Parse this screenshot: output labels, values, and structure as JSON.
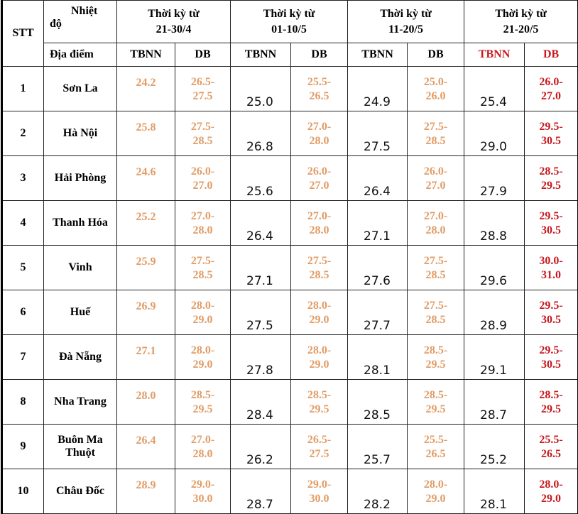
{
  "header": {
    "stt": "STT",
    "temp_label": "Nhiệt",
    "temp_label2": "độ",
    "location_label": "Địa điểm",
    "periods": [
      {
        "line1": "Thời kỳ từ",
        "line2": "21-30/4",
        "highlight": false
      },
      {
        "line1": "Thời kỳ từ",
        "line2": "01-10/5",
        "highlight": false
      },
      {
        "line1": "Thời kỳ từ",
        "line2": "11-20/5",
        "highlight": false
      },
      {
        "line1": "Thời kỳ từ",
        "line2": "21-20/5",
        "highlight": true
      }
    ],
    "sub_tbnn": "TBNN",
    "sub_db": "DB"
  },
  "colors": {
    "orange": "#e19c66",
    "red": "#c8181e",
    "text": "#111111"
  },
  "rows": [
    {
      "stt": "1",
      "location": [
        "Sơn La"
      ],
      "values": [
        [
          "24.2",
          "26.5-",
          "27.5"
        ],
        [
          "25.0",
          "25.5-",
          "26.5"
        ],
        [
          "24.9",
          "25.0-",
          "26.0"
        ],
        [
          "25.4",
          "26.0-",
          "27.0"
        ]
      ]
    },
    {
      "stt": "2",
      "location": [
        "Hà Nội"
      ],
      "values": [
        [
          "25.8",
          "27.5-",
          "28.5"
        ],
        [
          "26.8",
          "27.0-",
          "28.0"
        ],
        [
          "27.5",
          "27.5-",
          "28.5"
        ],
        [
          "29.0",
          "29.5-",
          "30.5"
        ]
      ]
    },
    {
      "stt": "3",
      "location": [
        "Hải Phòng"
      ],
      "values": [
        [
          "24.6",
          "26.0-",
          "27.0"
        ],
        [
          "25.6",
          "26.0-",
          "27.0"
        ],
        [
          "26.4",
          "26.0-",
          "27.0"
        ],
        [
          "27.9",
          "28.5-",
          "29.5"
        ]
      ]
    },
    {
      "stt": "4",
      "location": [
        "Thanh Hóa"
      ],
      "values": [
        [
          "25.2",
          "27.0-",
          "28.0"
        ],
        [
          "26.4",
          "27.0-",
          "28.0"
        ],
        [
          "27.1",
          "27.0-",
          "28.0"
        ],
        [
          "28.8",
          "29.5-",
          "30.5"
        ]
      ]
    },
    {
      "stt": "5",
      "location": [
        "Vinh"
      ],
      "values": [
        [
          "25.9",
          "27.5-",
          "28.5"
        ],
        [
          "27.1",
          "27.5-",
          "28.5"
        ],
        [
          "27.6",
          "27.5-",
          "28.5"
        ],
        [
          "29.6",
          "30.0-",
          "31.0"
        ]
      ]
    },
    {
      "stt": "6",
      "location": [
        "Huế"
      ],
      "values": [
        [
          "26.9",
          "28.0-",
          "29.0"
        ],
        [
          "27.5",
          "28.0-",
          "29.0"
        ],
        [
          "27.7",
          "27.5-",
          "28.5"
        ],
        [
          "28.9",
          "29.5-",
          "30.5"
        ]
      ]
    },
    {
      "stt": "7",
      "location": [
        "Đà Nẵng"
      ],
      "values": [
        [
          "27.1",
          "28.0-",
          "29.0"
        ],
        [
          "27.8",
          "28.0-",
          "29.0"
        ],
        [
          "28.1",
          "28.5-",
          "29.5"
        ],
        [
          "29.1",
          "29.5-",
          "30.5"
        ]
      ]
    },
    {
      "stt": "8",
      "location": [
        "Nha Trang"
      ],
      "values": [
        [
          "28.0",
          "28.5-",
          "29.5"
        ],
        [
          "28.4",
          "28.5-",
          "29.5"
        ],
        [
          "28.5",
          "28.5-",
          "29.5"
        ],
        [
          "28.7",
          "28.5-",
          "29.5"
        ]
      ]
    },
    {
      "stt": "9",
      "location": [
        "Buôn Ma",
        "Thuột"
      ],
      "values": [
        [
          "26.4",
          "27.0-",
          "28.0"
        ],
        [
          "26.2",
          "26.5-",
          "27.5"
        ],
        [
          "25.7",
          "25.5-",
          "26.5"
        ],
        [
          "25.2",
          "25.5-",
          "26.5"
        ]
      ]
    },
    {
      "stt": "10",
      "location": [
        "Châu Đốc"
      ],
      "values": [
        [
          "28.9",
          "29.0-",
          "30.0"
        ],
        [
          "28.7",
          "29.0-",
          "30.0"
        ],
        [
          "28.2",
          "28.0-",
          "29.0"
        ],
        [
          "28.1",
          "28.0-",
          "29.0"
        ]
      ]
    }
  ]
}
